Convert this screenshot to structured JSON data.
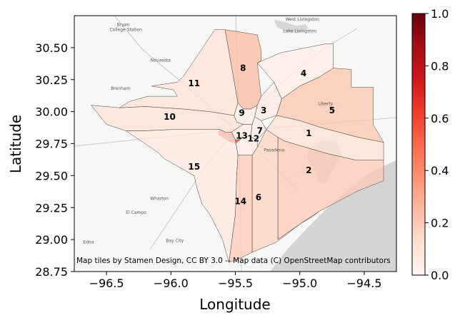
{
  "chart_data": {
    "type": "map",
    "xlabel": "Longitude",
    "ylabel": "Latitude",
    "xlim": [
      -96.75,
      -94.25
    ],
    "ylim": [
      28.75,
      30.75
    ],
    "x_ticks": [
      {
        "value": -96.5,
        "label": "−96.5"
      },
      {
        "value": -96.0,
        "label": "−96.0"
      },
      {
        "value": -95.5,
        "label": "−95.5"
      },
      {
        "value": -95.0,
        "label": "−95.0"
      },
      {
        "value": -94.5,
        "label": "−94.5"
      }
    ],
    "y_ticks": [
      {
        "value": 28.75,
        "label": "28.75"
      },
      {
        "value": 29.0,
        "label": "29.00"
      },
      {
        "value": 29.25,
        "label": "29.25"
      },
      {
        "value": 29.5,
        "label": "29.50"
      },
      {
        "value": 29.75,
        "label": "29.75"
      },
      {
        "value": 30.0,
        "label": "30.00"
      },
      {
        "value": 30.25,
        "label": "30.25"
      },
      {
        "value": 30.5,
        "label": "30.50"
      }
    ],
    "colorbar": {
      "colormap": "Reds",
      "range": [
        0.0,
        1.0
      ],
      "ticks": [
        {
          "value": 0.0,
          "label": "0.0"
        },
        {
          "value": 0.2,
          "label": "0.2"
        },
        {
          "value": 0.4,
          "label": "0.4"
        },
        {
          "value": 0.6,
          "label": "0.6"
        },
        {
          "value": 0.8,
          "label": "0.8"
        },
        {
          "value": 1.0,
          "label": "1.0"
        }
      ]
    },
    "regions": [
      {
        "label": "1",
        "value": 0.12,
        "lon": -94.93,
        "lat": 29.83,
        "polygon": [
          [
            -95.26,
            29.86
          ],
          [
            -95.17,
            29.8
          ],
          [
            -95.12,
            29.77
          ],
          [
            -94.78,
            29.67
          ],
          [
            -94.56,
            29.62
          ],
          [
            -94.35,
            29.62
          ],
          [
            -94.35,
            29.76
          ],
          [
            -94.55,
            29.8
          ],
          [
            -94.7,
            29.84
          ],
          [
            -94.85,
            29.88
          ],
          [
            -95.0,
            29.93
          ],
          [
            -95.18,
            29.97
          ]
        ]
      },
      {
        "label": "2",
        "value": 0.2,
        "lon": -94.93,
        "lat": 29.54,
        "polygon": [
          [
            -95.17,
            29.8
          ],
          [
            -95.12,
            29.77
          ],
          [
            -94.78,
            29.67
          ],
          [
            -94.56,
            29.62
          ],
          [
            -94.35,
            29.62
          ],
          [
            -94.35,
            29.46
          ],
          [
            -94.55,
            29.38
          ],
          [
            -94.7,
            29.3
          ],
          [
            -94.85,
            29.22
          ],
          [
            -95.0,
            29.12
          ],
          [
            -95.1,
            29.05
          ],
          [
            -95.17,
            29.0
          ]
        ]
      },
      {
        "label": "3",
        "value": 0.06,
        "lon": -95.28,
        "lat": 30.01,
        "polygon": [
          [
            -95.33,
            30.05
          ],
          [
            -95.3,
            30.12
          ],
          [
            -95.2,
            30.23
          ],
          [
            -95.14,
            30.1
          ],
          [
            -95.18,
            29.97
          ],
          [
            -95.3,
            29.93
          ],
          [
            -95.35,
            29.96
          ]
        ]
      },
      {
        "label": "4",
        "value": 0.05,
        "lon": -94.97,
        "lat": 30.3,
        "polygon": [
          [
            -95.33,
            30.38
          ],
          [
            -95.15,
            30.46
          ],
          [
            -94.95,
            30.5
          ],
          [
            -94.8,
            30.53
          ],
          [
            -94.74,
            30.53
          ],
          [
            -94.74,
            30.34
          ],
          [
            -94.85,
            30.27
          ],
          [
            -95.0,
            30.2
          ],
          [
            -95.14,
            30.1
          ],
          [
            -95.2,
            30.23
          ]
        ]
      },
      {
        "label": "5",
        "value": 0.22,
        "lon": -94.75,
        "lat": 30.01,
        "polygon": [
          [
            -94.74,
            30.34
          ],
          [
            -94.85,
            30.27
          ],
          [
            -95.0,
            30.2
          ],
          [
            -95.14,
            30.1
          ],
          [
            -95.18,
            29.97
          ],
          [
            -95.0,
            29.93
          ],
          [
            -94.85,
            29.88
          ],
          [
            -94.7,
            29.84
          ],
          [
            -94.55,
            29.8
          ],
          [
            -94.35,
            29.76
          ],
          [
            -94.43,
            29.9
          ],
          [
            -94.43,
            30.19
          ],
          [
            -94.6,
            30.19
          ],
          [
            -94.6,
            30.33
          ]
        ]
      },
      {
        "label": "6",
        "value": 0.17,
        "lon": -95.32,
        "lat": 29.33,
        "polygon": [
          [
            -95.26,
            29.86
          ],
          [
            -95.17,
            29.8
          ],
          [
            -95.17,
            29.0
          ],
          [
            -95.1,
            29.05
          ],
          [
            -95.0,
            29.12
          ],
          [
            -94.9,
            29.18
          ],
          [
            -94.85,
            29.22
          ],
          [
            -95.0,
            29.12
          ],
          [
            -95.18,
            28.98
          ],
          [
            -95.3,
            28.93
          ],
          [
            -95.37,
            28.9
          ],
          [
            -95.37,
            29.66
          ],
          [
            -95.33,
            29.72
          ]
        ]
      },
      {
        "label": "7",
        "value": 0.04,
        "lon": -95.31,
        "lat": 29.85,
        "polygon": [
          [
            -95.35,
            29.96
          ],
          [
            -95.3,
            29.93
          ],
          [
            -95.26,
            29.86
          ],
          [
            -95.33,
            29.78
          ],
          [
            -95.38,
            29.8
          ],
          [
            -95.37,
            29.9
          ]
        ]
      },
      {
        "label": "8",
        "value": 0.25,
        "lon": -95.44,
        "lat": 30.34,
        "polygon": [
          [
            -95.58,
            30.64
          ],
          [
            -95.45,
            30.62
          ],
          [
            -95.33,
            30.6
          ],
          [
            -95.3,
            30.48
          ],
          [
            -95.3,
            30.4
          ],
          [
            -95.33,
            30.38
          ],
          [
            -95.3,
            30.12
          ],
          [
            -95.33,
            30.05
          ],
          [
            -95.38,
            30.02
          ],
          [
            -95.44,
            30.02
          ],
          [
            -95.48,
            30.07
          ]
        ]
      },
      {
        "label": "9",
        "value": 0.04,
        "lon": -95.45,
        "lat": 29.99,
        "polygon": [
          [
            -95.48,
            30.07
          ],
          [
            -95.44,
            30.02
          ],
          [
            -95.38,
            30.02
          ],
          [
            -95.33,
            30.05
          ],
          [
            -95.35,
            29.96
          ],
          [
            -95.37,
            29.9
          ],
          [
            -95.44,
            29.9
          ],
          [
            -95.49,
            29.92
          ],
          [
            -95.51,
            29.97
          ]
        ]
      },
      {
        "label": "10",
        "value": 0.12,
        "lon": -96.01,
        "lat": 29.96,
        "polygon": [
          [
            -96.62,
            30.05
          ],
          [
            -96.4,
            30.03
          ],
          [
            -96.2,
            30.04
          ],
          [
            -96.05,
            30.03
          ],
          [
            -95.9,
            30.02
          ],
          [
            -95.7,
            30.0
          ],
          [
            -95.51,
            29.97
          ],
          [
            -95.49,
            29.92
          ],
          [
            -95.44,
            29.9
          ],
          [
            -95.53,
            29.84
          ],
          [
            -95.58,
            29.84
          ],
          [
            -95.62,
            29.86
          ],
          [
            -95.8,
            29.86
          ],
          [
            -96.0,
            29.86
          ],
          [
            -96.2,
            29.85
          ],
          [
            -96.35,
            29.85
          ],
          [
            -96.5,
            29.9
          ]
        ]
      },
      {
        "label": "11",
        "value": 0.11,
        "lon": -95.82,
        "lat": 30.22,
        "polygon": [
          [
            -95.66,
            30.64
          ],
          [
            -95.58,
            30.64
          ],
          [
            -95.48,
            30.07
          ],
          [
            -95.51,
            29.97
          ],
          [
            -95.7,
            30.0
          ],
          [
            -95.9,
            30.02
          ],
          [
            -96.05,
            30.03
          ],
          [
            -96.2,
            30.04
          ],
          [
            -96.4,
            30.03
          ],
          [
            -96.32,
            30.08
          ],
          [
            -96.25,
            30.1
          ],
          [
            -96.18,
            30.12
          ],
          [
            -95.95,
            30.12
          ],
          [
            -95.98,
            30.17
          ],
          [
            -96.15,
            30.2
          ],
          [
            -95.95,
            30.23
          ],
          [
            -95.9,
            30.28
          ]
        ]
      },
      {
        "label": "12",
        "value": 0.05,
        "lon": -95.36,
        "lat": 29.79,
        "polygon": [
          [
            -95.44,
            29.9
          ],
          [
            -95.37,
            29.9
          ],
          [
            -95.38,
            29.8
          ],
          [
            -95.33,
            29.78
          ],
          [
            -95.33,
            29.72
          ],
          [
            -95.37,
            29.66
          ],
          [
            -95.48,
            29.66
          ],
          [
            -95.5,
            29.78
          ],
          [
            -95.53,
            29.84
          ]
        ]
      },
      {
        "label": "13",
        "value": 0.62,
        "lon": -95.45,
        "lat": 29.81,
        "polygon": [
          [
            -95.58,
            29.84
          ],
          [
            -95.53,
            29.84
          ],
          [
            -95.5,
            29.78
          ],
          [
            -95.48,
            29.78
          ],
          [
            -95.44,
            29.8
          ],
          [
            -95.5,
            29.75
          ],
          [
            -95.55,
            29.77
          ],
          [
            -95.63,
            29.82
          ],
          [
            -95.62,
            29.86
          ]
        ]
      },
      {
        "label": "14",
        "value": 0.2,
        "lon": -95.46,
        "lat": 29.3,
        "polygon": [
          [
            -95.48,
            29.66
          ],
          [
            -95.37,
            29.66
          ],
          [
            -95.37,
            28.9
          ],
          [
            -95.45,
            28.86
          ],
          [
            -95.55,
            28.82
          ],
          [
            -95.5,
            29.2
          ],
          [
            -95.49,
            29.5
          ]
        ]
      },
      {
        "label": "15",
        "value": 0.08,
        "lon": -95.82,
        "lat": 29.57,
        "polygon": [
          [
            -96.35,
            29.85
          ],
          [
            -96.2,
            29.85
          ],
          [
            -96.0,
            29.86
          ],
          [
            -95.8,
            29.86
          ],
          [
            -95.62,
            29.86
          ],
          [
            -95.58,
            29.84
          ],
          [
            -95.53,
            29.84
          ],
          [
            -95.5,
            29.78
          ],
          [
            -95.48,
            29.66
          ],
          [
            -95.49,
            29.5
          ],
          [
            -95.5,
            29.2
          ],
          [
            -95.55,
            28.82
          ],
          [
            -95.6,
            29.0
          ],
          [
            -95.7,
            29.2
          ],
          [
            -95.76,
            29.28
          ],
          [
            -95.8,
            29.41
          ],
          [
            -95.82,
            29.5
          ],
          [
            -96.05,
            29.63
          ],
          [
            -96.1,
            29.68
          ],
          [
            -96.2,
            29.75
          ]
        ]
      }
    ],
    "places": [
      {
        "name": "Bryan",
        "lon": -96.37,
        "lat": 30.67
      },
      {
        "name": "College Station",
        "lon": -96.35,
        "lat": 30.63
      },
      {
        "name": "West Livingston",
        "lon": -94.98,
        "lat": 30.71
      },
      {
        "name": "Lake Livingston",
        "lon": -95.0,
        "lat": 30.62
      },
      {
        "name": "Navasota",
        "lon": -96.08,
        "lat": 30.39
      },
      {
        "name": "Brenham",
        "lon": -96.39,
        "lat": 30.17
      },
      {
        "name": "Liberty",
        "lon": -94.8,
        "lat": 30.05
      },
      {
        "name": "Pasadena",
        "lon": -95.2,
        "lat": 29.69
      },
      {
        "name": "Wharton",
        "lon": -96.09,
        "lat": 29.31
      },
      {
        "name": "El Campo",
        "lon": -96.27,
        "lat": 29.2
      },
      {
        "name": "Bay City",
        "lon": -95.97,
        "lat": 28.98
      },
      {
        "name": "Edna",
        "lon": -96.64,
        "lat": 28.97
      }
    ],
    "attribution": "Map tiles by Stamen Design, CC BY 3.0 -- Map data (C) OpenStreetMap contributors"
  }
}
